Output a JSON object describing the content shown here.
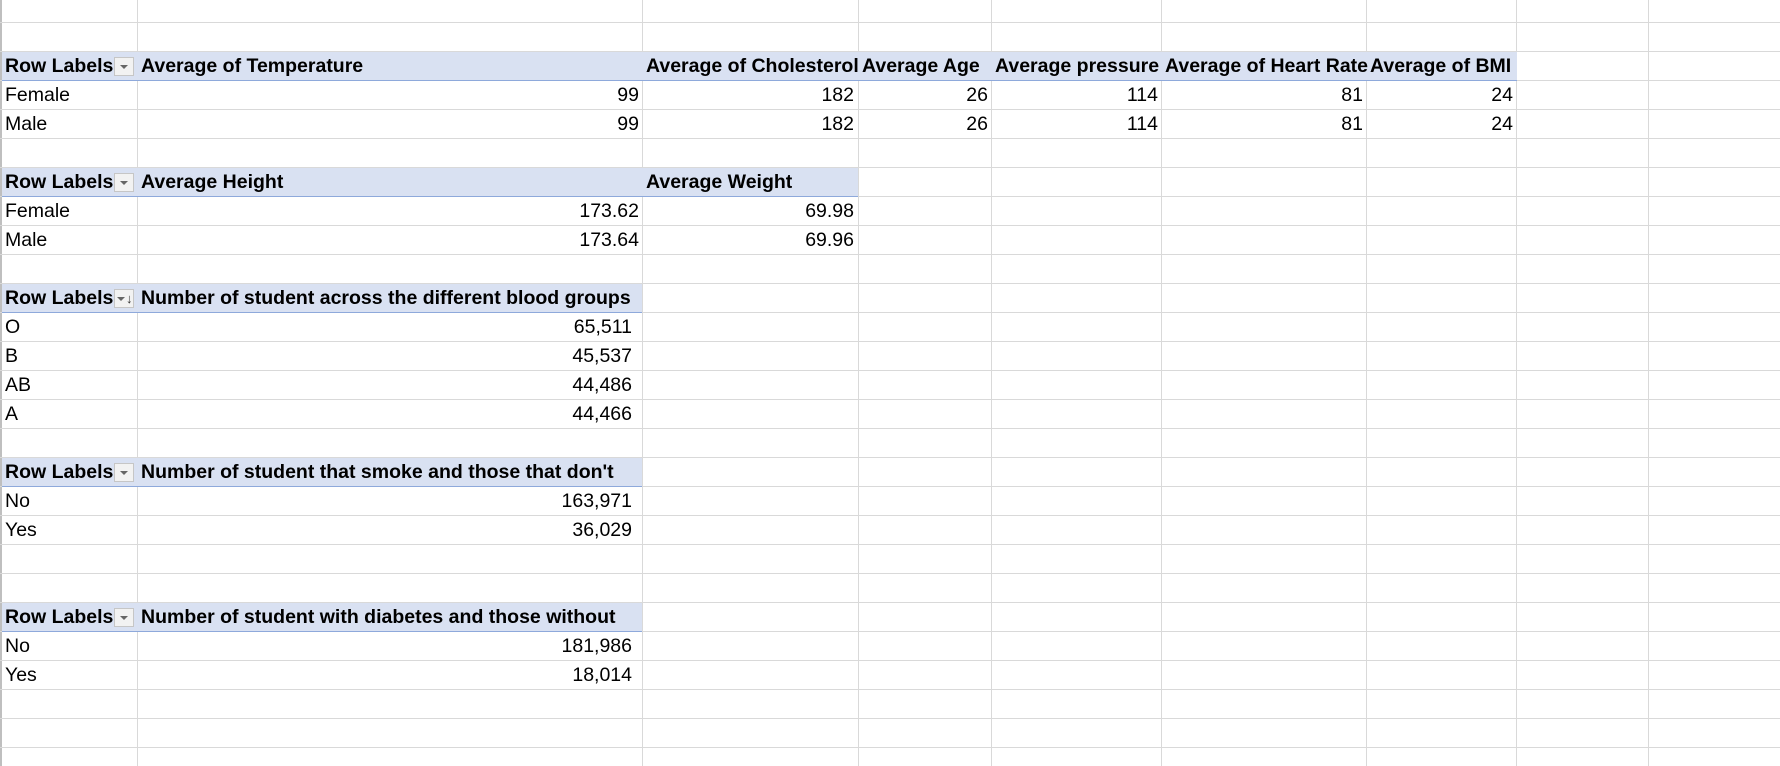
{
  "pivot_temperature": {
    "headers": {
      "row_labels": "Row Labels",
      "temperature": "Average of Temperature",
      "cholesterol": "Average of Cholesterol",
      "age": "Average  Age",
      "pressure": "Average pressure",
      "heart_rate": "Average of Heart Rate",
      "bmi": "Average of BMI"
    },
    "rows": [
      {
        "label": "Female",
        "temperature": "99",
        "cholesterol": "182",
        "age": "26",
        "pressure": "114",
        "heart_rate": "81",
        "bmi": "24"
      },
      {
        "label": "Male",
        "temperature": "99",
        "cholesterol": "182",
        "age": "26",
        "pressure": "114",
        "heart_rate": "81",
        "bmi": "24"
      }
    ]
  },
  "pivot_height": {
    "headers": {
      "row_labels": "Row Labels",
      "height": "Average  Height",
      "weight": "Average  Weight"
    },
    "rows": [
      {
        "label": "Female",
        "height": "173.62",
        "weight": "69.98"
      },
      {
        "label": "Male",
        "height": "173.64",
        "weight": "69.96"
      }
    ]
  },
  "pivot_blood": {
    "headers": {
      "row_labels": "Row Labels",
      "count": "Number of student across the different blood groups"
    },
    "rows": [
      {
        "label": "O",
        "count": "65,511"
      },
      {
        "label": "B",
        "count": "45,537"
      },
      {
        "label": "AB",
        "count": "44,486"
      },
      {
        "label": "A",
        "count": "44,466"
      }
    ]
  },
  "pivot_smoke": {
    "headers": {
      "row_labels": "Row Labels",
      "count": "Number of student that smoke and those that don't"
    },
    "rows": [
      {
        "label": "No",
        "count": "163,971"
      },
      {
        "label": "Yes",
        "count": "36,029"
      }
    ]
  },
  "pivot_diabetes": {
    "headers": {
      "row_labels": "Row Labels",
      "count": "Number of student with diabetes and those without"
    },
    "rows": [
      {
        "label": "No",
        "count": "181,986"
      },
      {
        "label": "Yes",
        "count": "18,014"
      }
    ]
  },
  "icons": {
    "filter_dropdown": "filter-dropdown-icon",
    "sort_descending": "sort-descending-icon"
  },
  "colors": {
    "header_band": "#d9e1f2",
    "gridline": "#d9d9d9"
  }
}
